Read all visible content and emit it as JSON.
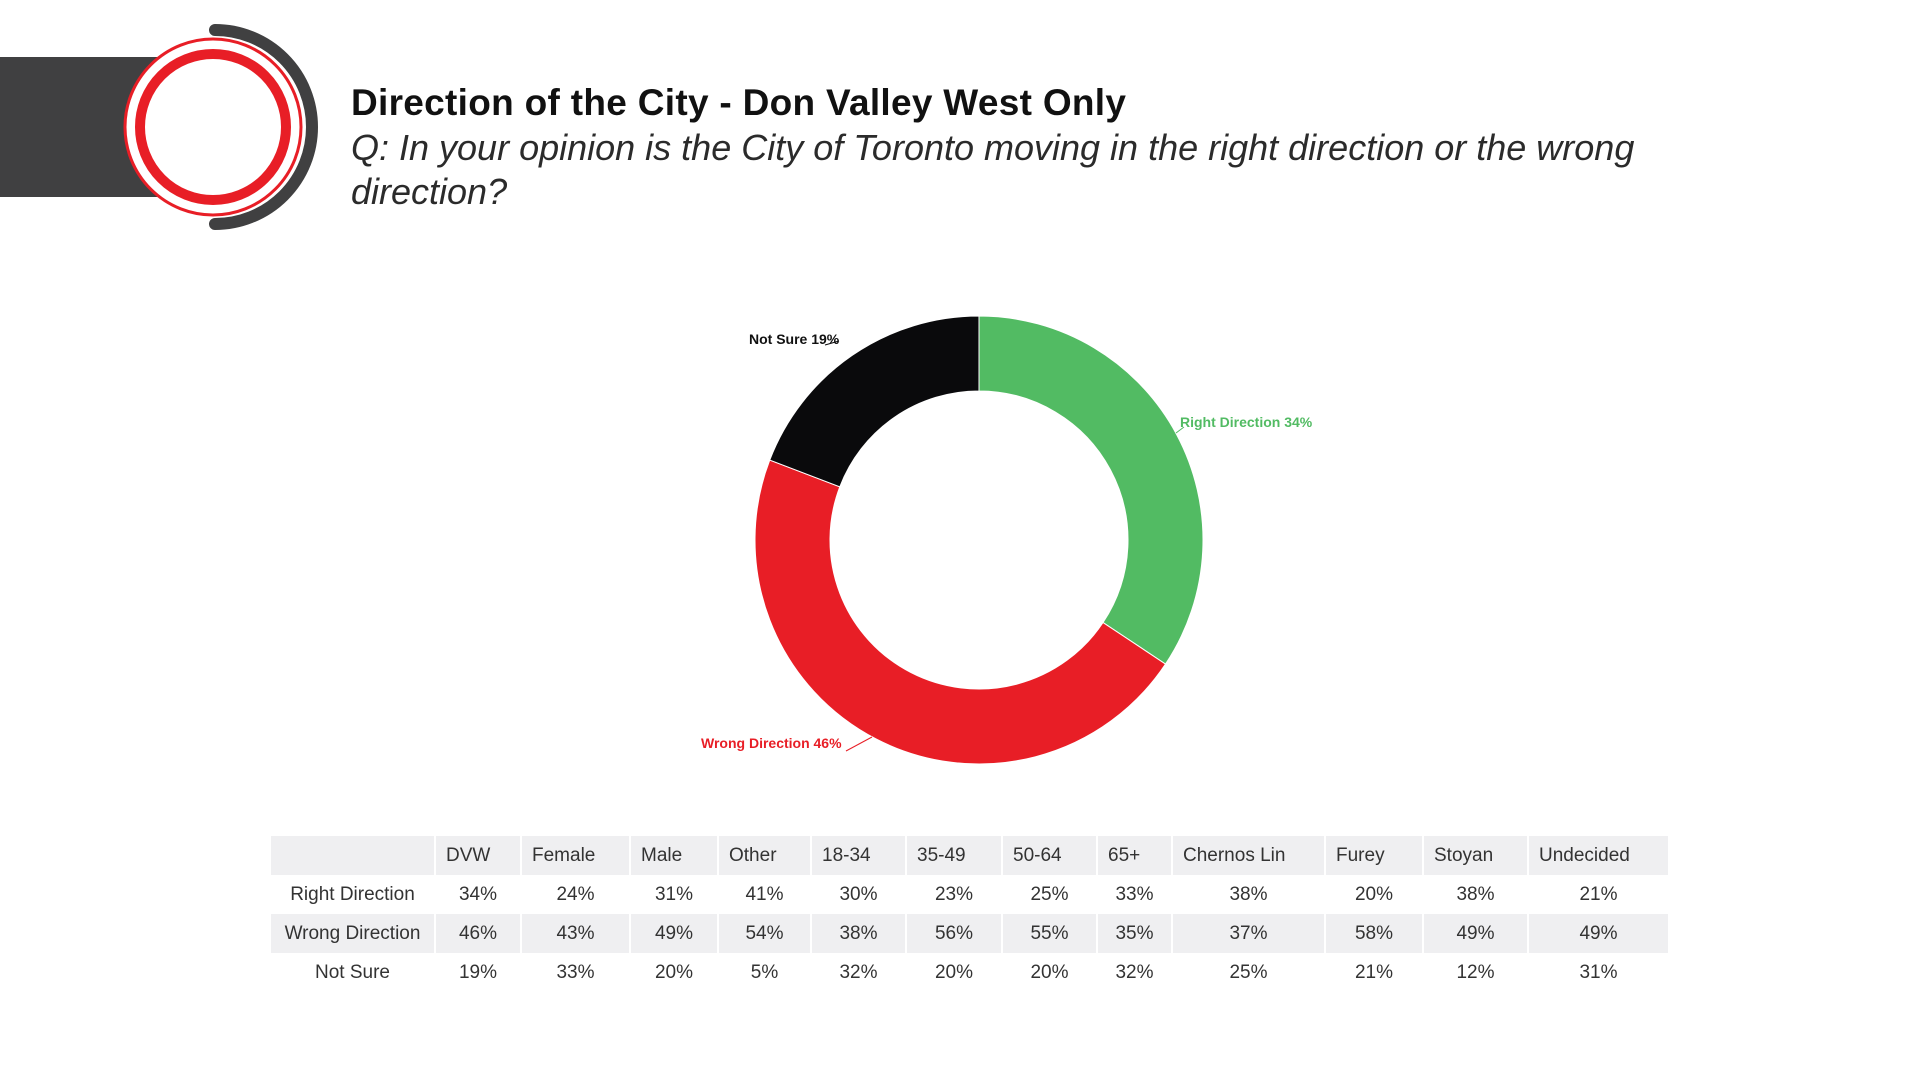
{
  "header": {
    "title": "Direction of the City - Don Valley West Only",
    "question": "Q: In your opinion is the City of Toronto moving in the right direction or the wrong direction?"
  },
  "colors": {
    "right": "#52bb63",
    "wrong": "#e81e26",
    "not_sure": "#0a0a0c",
    "logo_gray": "#404041",
    "logo_red": "#e81e26"
  },
  "chart_data": [
    {
      "type": "pie",
      "donut": true,
      "slices": [
        {
          "label": "Right Direction",
          "value": 34,
          "display": "Right Direction 34%"
        },
        {
          "label": "Wrong Direction",
          "value": 46,
          "display": "Wrong Direction 46%"
        },
        {
          "label": "Not Sure",
          "value": 19,
          "display": "Not Sure 19%"
        }
      ]
    },
    {
      "type": "table",
      "columns": [
        "",
        "DVW",
        "Female",
        "Male",
        "Other",
        "18-34",
        "35-49",
        "50-64",
        "65+",
        "Chernos Lin",
        "Furey",
        "Stoyan",
        "Undecided"
      ],
      "rows": [
        {
          "label": "Right Direction",
          "values": [
            "34%",
            "24%",
            "31%",
            "41%",
            "30%",
            "23%",
            "25%",
            "33%",
            "38%",
            "20%",
            "38%",
            "21%"
          ]
        },
        {
          "label": "Wrong Direction",
          "values": [
            "46%",
            "43%",
            "49%",
            "54%",
            "38%",
            "56%",
            "55%",
            "35%",
            "37%",
            "58%",
            "49%",
            "49%"
          ]
        },
        {
          "label": "Not Sure",
          "values": [
            "19%",
            "33%",
            "20%",
            "5%",
            "32%",
            "20%",
            "20%",
            "32%",
            "25%",
            "21%",
            "12%",
            "31%"
          ]
        }
      ]
    }
  ]
}
